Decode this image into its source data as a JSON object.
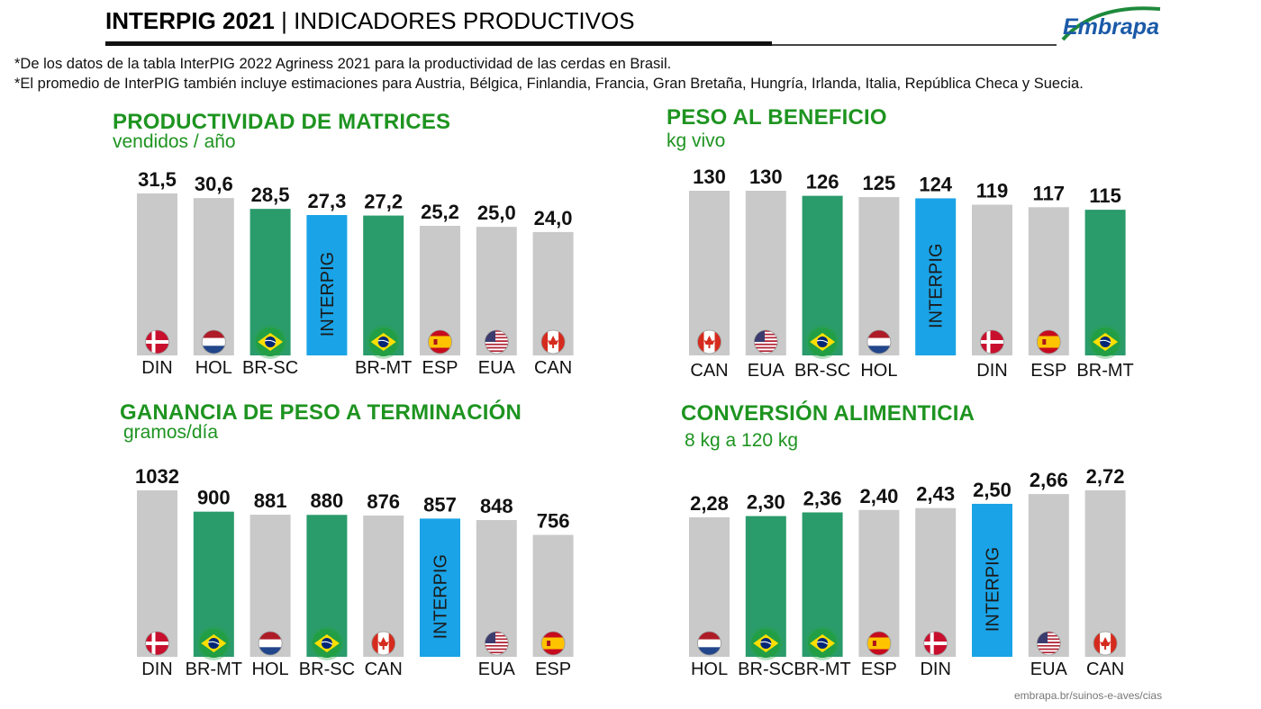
{
  "header": {
    "title_bold": "INTERPIG 2021",
    "separator": " | ",
    "title_rest": "INDICADORES PRODUCTIVOS"
  },
  "logo_text": "Embrapa",
  "notes": [
    "*De los datos de la tabla InterPIG 2022 Agriness 2021 para la productividad de las cerdas en Brasil.",
    "*El promedio de InterPIG también incluye estimaciones para Austria, Bélgica, Finlandia, Francia, Gran Bretaña, Hungría, Irlanda, Italia, República Checa y Suecia."
  ],
  "footer": "embrapa.br/suinos-e-aves/cias",
  "colors": {
    "gray": "#c9c9c9",
    "brazil": "#2a9b6b",
    "interpig": "#1aa3e6",
    "title_green": "#1e9420"
  },
  "chart_data": [
    {
      "type": "bar",
      "title": "PRODUCTIVIDAD DE MATRICES",
      "subtitle": "vendidos / año",
      "categories": [
        "DIN",
        "HOL",
        "BR-SC",
        "",
        "BR-MT",
        "ESP",
        "EUA",
        "CAN"
      ],
      "value_labels": [
        "31,5",
        "30,6",
        "28,5",
        "27,3",
        "27,2",
        "25,2",
        "25,0",
        "24,0"
      ],
      "values": [
        31.5,
        30.6,
        28.5,
        27.3,
        27.2,
        25.2,
        25.0,
        24.0
      ],
      "kinds": [
        "gray",
        "gray",
        "brazil",
        "interpig",
        "brazil",
        "gray",
        "gray",
        "gray"
      ],
      "flags": [
        "denmark-flag-icon",
        "netherlands-flag-icon",
        "brazil-flag-icon",
        "",
        "brazil-flag-icon",
        "spain-flag-icon",
        "usa-flag-icon",
        "canada-flag-icon"
      ],
      "interpig_label": "INTERPIG"
    },
    {
      "type": "bar",
      "title": "PESO AL BENEFICIO",
      "subtitle": "kg vivo",
      "categories": [
        "CAN",
        "EUA",
        "BR-SC",
        "HOL",
        "",
        "DIN",
        "ESP",
        "BR-MT"
      ],
      "value_labels": [
        "130",
        "130",
        "126",
        "125",
        "124",
        "119",
        "117",
        "115"
      ],
      "values": [
        130,
        130,
        126,
        125,
        124,
        119,
        117,
        115
      ],
      "kinds": [
        "gray",
        "gray",
        "brazil",
        "gray",
        "interpig",
        "gray",
        "gray",
        "brazil"
      ],
      "flags": [
        "canada-flag-icon",
        "usa-flag-icon",
        "brazil-flag-icon",
        "netherlands-flag-icon",
        "",
        "denmark-flag-icon",
        "spain-flag-icon",
        "brazil-flag-icon"
      ],
      "interpig_label": "INTERPIG"
    },
    {
      "type": "bar",
      "title": "GANANCIA DE PESO A TERMINACIÓN",
      "subtitle": "gramos/día",
      "categories": [
        "DIN",
        "BR-MT",
        "HOL",
        "BR-SC",
        "CAN",
        "",
        "EUA",
        "ESP"
      ],
      "value_labels": [
        "1032",
        "900",
        "881",
        "880",
        "876",
        "857",
        "848",
        "756"
      ],
      "values": [
        1032,
        900,
        881,
        880,
        876,
        857,
        848,
        756
      ],
      "kinds": [
        "gray",
        "brazil",
        "gray",
        "brazil",
        "gray",
        "interpig",
        "gray",
        "gray"
      ],
      "flags": [
        "denmark-flag-icon",
        "brazil-flag-icon",
        "netherlands-flag-icon",
        "brazil-flag-icon",
        "canada-flag-icon",
        "",
        "usa-flag-icon",
        "spain-flag-icon"
      ],
      "interpig_label": "INTERPIG"
    },
    {
      "type": "bar",
      "title": "CONVERSIÓN ALIMENTICIA",
      "subtitle": "8 kg a 120 kg",
      "categories": [
        "HOL",
        "BR-SC",
        "BR-MT",
        "ESP",
        "DIN",
        "",
        "EUA",
        "CAN"
      ],
      "value_labels": [
        "2,28",
        "2,30",
        "2,36",
        "2,40",
        "2,43",
        "2,50",
        "2,66",
        "2,72"
      ],
      "values": [
        2.28,
        2.3,
        2.36,
        2.4,
        2.43,
        2.5,
        2.66,
        2.72
      ],
      "kinds": [
        "gray",
        "brazil",
        "brazil",
        "gray",
        "gray",
        "interpig",
        "gray",
        "gray"
      ],
      "flags": [
        "netherlands-flag-icon",
        "brazil-flag-icon",
        "brazil-flag-icon",
        "spain-flag-icon",
        "denmark-flag-icon",
        "",
        "usa-flag-icon",
        "canada-flag-icon"
      ],
      "interpig_label": "INTERPIG"
    }
  ]
}
